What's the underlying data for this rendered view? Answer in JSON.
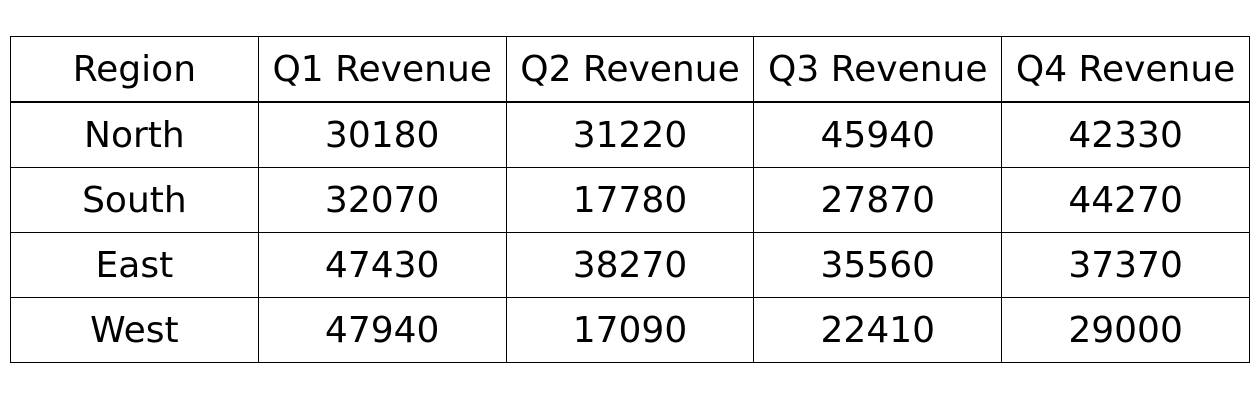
{
  "chart_data": {
    "type": "table",
    "columns": [
      "Region",
      "Q1 Revenue",
      "Q2 Revenue",
      "Q3 Revenue",
      "Q4 Revenue"
    ],
    "rows": [
      [
        "North",
        "30180",
        "31220",
        "45940",
        "42330"
      ],
      [
        "South",
        "32070",
        "17780",
        "27870",
        "44270"
      ],
      [
        "East",
        "47430",
        "38270",
        "35560",
        "37370"
      ],
      [
        "West",
        "47940",
        "17090",
        "22410",
        "29000"
      ]
    ]
  }
}
